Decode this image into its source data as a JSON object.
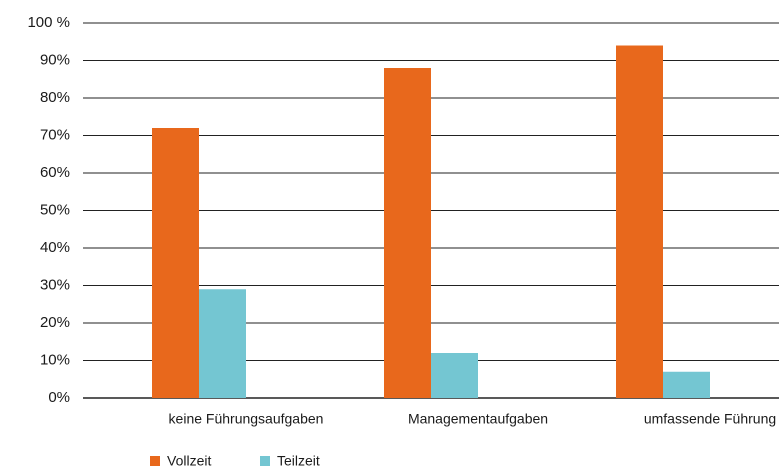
{
  "chart_data": {
    "type": "bar",
    "categories": [
      "keine Führungsaufgaben",
      "Managementaufgaben",
      "umfassende Führung"
    ],
    "series": [
      {
        "name": "Vollzeit",
        "color": "#e8681c",
        "values": [
          72,
          88,
          94
        ]
      },
      {
        "name": "Teilzeit",
        "color": "#74c6d2",
        "values": [
          29,
          12,
          7
        ]
      }
    ],
    "ylim": [
      0,
      100
    ],
    "yticks": [
      {
        "value": 0,
        "label": "0%"
      },
      {
        "value": 10,
        "label": "10%"
      },
      {
        "value": 20,
        "label": "20%"
      },
      {
        "value": 30,
        "label": "30%"
      },
      {
        "value": 40,
        "label": "40%"
      },
      {
        "value": 50,
        "label": "50%"
      },
      {
        "value": 60,
        "label": "60%"
      },
      {
        "value": 70,
        "label": "70%"
      },
      {
        "value": 80,
        "label": "80%"
      },
      {
        "value": 90,
        "label": "90%"
      },
      {
        "value": 100,
        "label": "100 %"
      }
    ],
    "grid": true,
    "legend": "bottom-left"
  }
}
